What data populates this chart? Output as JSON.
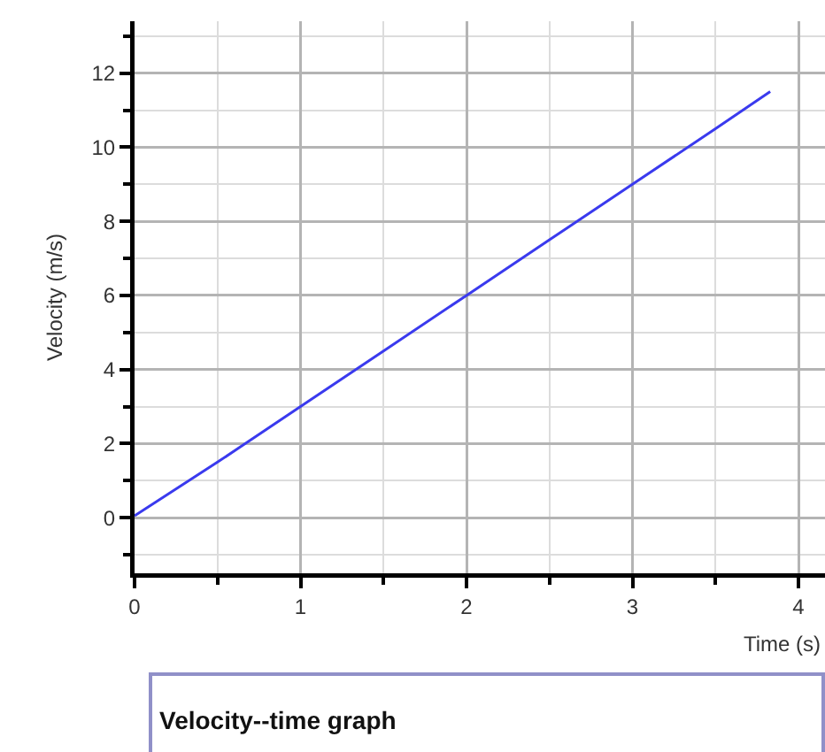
{
  "chart_data": {
    "type": "line",
    "title": "Velocity--time graph",
    "xlabel": "Time (s)",
    "ylabel": "Velocity (m/s)",
    "x": [
      0,
      0.5,
      1,
      1.5,
      2,
      2.5,
      3,
      3.5,
      3.83
    ],
    "series": [
      {
        "color": "#3a3aee",
        "values": [
          0.05,
          1.5,
          3,
          4.5,
          6,
          7.5,
          9,
          10.5,
          11.5
        ]
      }
    ],
    "xlim": [
      0,
      4.16
    ],
    "ylim": [
      -1.5,
      13.4
    ],
    "xticks": [
      0,
      {
        "value": 0.5,
        "label": null
      },
      1,
      {
        "value": 1.5,
        "label": null
      },
      2,
      {
        "value": 2.5,
        "label": null
      },
      3,
      {
        "value": 3.5,
        "label": null
      },
      4
    ],
    "yticks": [
      {
        "value": -1,
        "label": null
      },
      0,
      {
        "value": 1,
        "label": null
      },
      2,
      {
        "value": 3,
        "label": null
      },
      4,
      {
        "value": 5,
        "label": null
      },
      6,
      {
        "value": 7,
        "label": null
      },
      8,
      {
        "value": 9,
        "label": null
      },
      10,
      {
        "value": 11,
        "label": null
      },
      12,
      {
        "value": 13,
        "label": null
      }
    ],
    "grid": true,
    "marker": "none",
    "line_style": "solid"
  }
}
